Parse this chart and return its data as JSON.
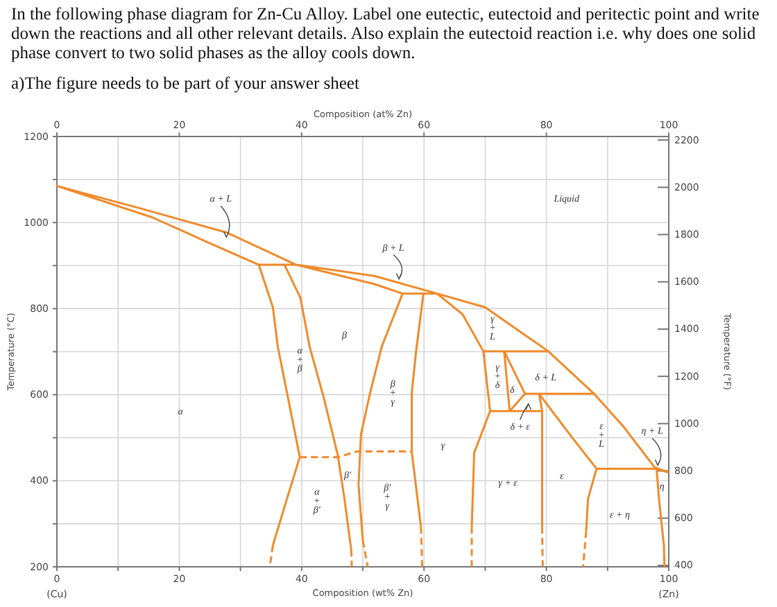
{
  "chart_data": {
    "type": "line",
    "title": "In the following phase diagram for Zn-Cu Alloy. Label one eutectic, eutectoid and peritectic point and write down the reactions and all other relevant details. Also explain the eutectoid reaction i.e. why does one solid phase convert to two solid phases as the alloy cools down.",
    "subtitle": "a)The figure needs to be part of your answer sheet",
    "xlabel": "Composition (wt% Zn)",
    "x2label": "Composition (at% Zn)",
    "ylabel": "Temperature (°C)",
    "y2label": "Temperature (°F)",
    "xlim": [
      0,
      100
    ],
    "xticks": [
      {
        "value": 0,
        "label": "0\n(Cu)"
      },
      {
        "value": 10,
        "label": null
      },
      20,
      {
        "value": 30,
        "label": null
      },
      40,
      {
        "value": 50,
        "label": null
      },
      60,
      {
        "value": 70,
        "label": null
      },
      80,
      {
        "value": 90,
        "label": null
      },
      {
        "value": 100,
        "label": "100\n(Zn)"
      }
    ],
    "x2lim": [
      0,
      100
    ],
    "x2ticks": [
      0,
      20,
      40,
      60,
      80,
      100
    ],
    "ylim": [
      200,
      1200
    ],
    "yticks": [
      200,
      {
        "value": 300,
        "label": null
      },
      400,
      {
        "value": 500,
        "label": null
      },
      600,
      {
        "value": 700,
        "label": null
      },
      800,
      {
        "value": 900,
        "label": null
      },
      1000,
      {
        "value": 1100,
        "label": null
      },
      1200
    ],
    "y2lim": [
      394,
      2215
    ],
    "y2ticks": [
      400,
      600,
      800,
      1000,
      1200,
      1400,
      1600,
      1800,
      2000,
      2200
    ],
    "grid": true,
    "marker": "none",
    "line_style": "solid",
    "series": [
      {
        "color": "#f08a2a",
        "x": [
          62.1,
          56.5,
          51.9,
          39.1,
          33.0,
          24.7,
          15.6,
          0,
          13.4,
          27.7,
          39.1,
          51.9,
          62.1,
          70,
          80.3,
          87.8,
          92.7,
          97.7,
          100
        ],
        "values": [
          835,
          835,
          857,
          902,
          902,
          954,
          1012,
          1085,
          1034,
          977,
          902,
          876,
          835,
          803,
          701,
          602,
          524,
          431,
          420
        ]
      },
      {
        "color": "#f08a2a",
        "x": [
          33.0,
          35.3,
          36.1,
          37.6,
          39.7,
          37.6,
          35.3
        ],
        "values": [
          902,
          803,
          712,
          605,
          455,
          358,
          250
        ]
      },
      {
        "color": "#f08a2a",
        "line_style": "dashed",
        "x": [
          35.3,
          34.8
        ],
        "values": [
          250,
          200
        ]
      },
      {
        "color": "#f08a2a",
        "x": [
          37.2,
          39.8,
          41.3,
          43.6,
          45.9,
          47.0,
          48.1
        ],
        "values": [
          902,
          825,
          712,
          594,
          460,
          358,
          240
        ]
      },
      {
        "color": "#f08a2a",
        "line_style": "dashed",
        "x": [
          48.1,
          48.2
        ],
        "values": [
          240,
          200
        ]
      },
      {
        "color": "#f08a2a",
        "x": [
          56.5,
          53.1,
          51.2,
          49.7,
          49.3,
          50.0
        ],
        "values": [
          835,
          712,
          605,
          508,
          390,
          261
        ]
      },
      {
        "color": "#f08a2a",
        "line_style": "dashed",
        "x": [
          50.0,
          50.8
        ],
        "values": [
          261,
          200
        ]
      },
      {
        "color": "#f08a2a",
        "x": [
          59.9,
          58.7,
          58.0,
          58.0,
          59.5
        ],
        "values": [
          835,
          700,
          605,
          467,
          293
        ]
      },
      {
        "color": "#f08a2a",
        "line_style": "dashed",
        "x": [
          59.5,
          59.7
        ],
        "values": [
          293,
          200
        ]
      },
      {
        "color": "#f08a2a",
        "line_style": "dashed",
        "x": [
          39.7,
          46.0,
          49.0,
          58.0
        ],
        "values": [
          455,
          455,
          468,
          468
        ]
      },
      {
        "color": "#f08a2a",
        "x": [
          62.1,
          66.3,
          69.7,
          70.8,
          68.2,
          67.8
        ],
        "values": [
          835,
          787,
          701,
          562,
          465,
          293
        ]
      },
      {
        "color": "#f08a2a",
        "line_style": "dashed",
        "x": [
          67.8,
          67.8
        ],
        "values": [
          293,
          200
        ]
      },
      {
        "color": "#f08a2a",
        "x": [
          69.7,
          80.3
        ],
        "values": [
          701,
          701
        ]
      },
      {
        "color": "#f08a2a",
        "x": [
          73.1,
          74.0
        ],
        "values": [
          701,
          562
        ]
      },
      {
        "color": "#f08a2a",
        "x": [
          73.1,
          76.5
        ],
        "values": [
          701,
          602
        ]
      },
      {
        "color": "#f08a2a",
        "x": [
          76.5,
          74.0
        ],
        "values": [
          602,
          562
        ]
      },
      {
        "color": "#f08a2a",
        "x": [
          76.5,
          87.8
        ],
        "values": [
          602,
          602
        ]
      },
      {
        "color": "#f08a2a",
        "x": [
          70.8,
          79.3
        ],
        "values": [
          562,
          562
        ]
      },
      {
        "color": "#f08a2a",
        "x": [
          78.8,
          79.3,
          79.3
        ],
        "values": [
          602,
          562,
          293
        ]
      },
      {
        "color": "#f08a2a",
        "line_style": "dashed",
        "x": [
          79.3,
          79.4
        ],
        "values": [
          293,
          200
        ]
      },
      {
        "color": "#f08a2a",
        "x": [
          78.8,
          84.4,
          88.2
        ],
        "values": [
          602,
          497,
          428
        ]
      },
      {
        "color": "#f08a2a",
        "x": [
          88.2,
          98.0,
          100
        ],
        "values": [
          428,
          428,
          419
        ]
      },
      {
        "color": "#f08a2a",
        "x": [
          88.2,
          86.8,
          86.5
        ],
        "values": [
          428,
          358,
          283
        ]
      },
      {
        "color": "#f08a2a",
        "line_style": "dashed",
        "x": [
          86.5,
          86.0
        ],
        "values": [
          283,
          200
        ]
      },
      {
        "color": "#f08a2a",
        "x": [
          98.0,
          98.4,
          99.2,
          99.3
        ],
        "values": [
          428,
          358,
          250,
          200
        ]
      }
    ],
    "annotations": [
      {
        "text": "α + L",
        "x": 27.7,
        "y": 966
      },
      "Liquid",
      {
        "text": "β + L",
        "x": 55.9,
        "y": 869
      },
      "β",
      "α\n+\nβ",
      "γ\n+\nL",
      "α",
      "β\n+\nγ",
      "β′",
      "α\n+\nβ′",
      "β′\n+\nγ",
      "γ",
      "γ\n+\nδ",
      "δ",
      "δ + L",
      "δ + ε",
      "ε\n+\nL",
      "ε",
      "γ + ε",
      "ε + η",
      {
        "text": "η + L",
        "x": 98.2,
        "y": 436
      },
      "η"
    ]
  }
}
